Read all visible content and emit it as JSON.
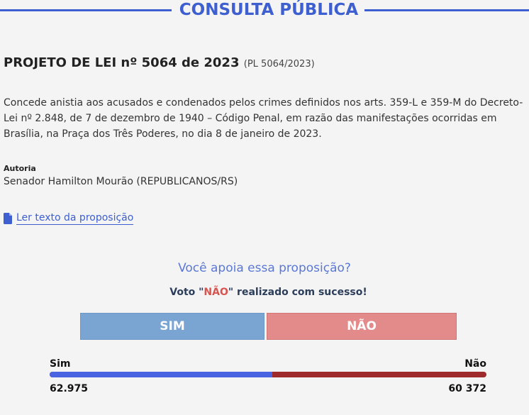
{
  "header": {
    "title": "CONSULTA PÚBLICA"
  },
  "proposal": {
    "title": "PROJETO DE LEI nº 5064 de 2023",
    "code": "(PL 5064/2023)",
    "ementa": "Concede anistia aos acusados e condenados pelos crimes definidos nos arts. 359-L e 359-M do Decreto-Lei nº 2.848, de 7 de dezembro de 1940 – Código Penal, em razão das manifestações ocorridas em Brasília, na Praça dos Três Poderes, no dia 8 de janeiro de 2023.",
    "autoria_label": "Autoria",
    "autoria_value": "Senador Hamilton Mourão (REPUBLICANOS/RS)",
    "read_link": "Ler texto da proposição"
  },
  "vote": {
    "question": "Você apoia essa proposição?",
    "msg_prefix": "Voto \"",
    "msg_choice": "NÃO",
    "msg_suffix": "\" realizado com sucesso!",
    "sim_label": "SIM",
    "nao_label": "NÃO"
  },
  "results": {
    "sim_label": "Sim",
    "nao_label": "Não",
    "sim_count": "62.975",
    "nao_count": "60 372",
    "sim_fraction": 0.5105
  },
  "colors": {
    "accent": "#3d5fcf",
    "sim_button": "#7aa5d2",
    "nao_button": "#e28b8a",
    "sim_bar": "#4a63e0",
    "nao_bar": "#9e2a2b"
  }
}
